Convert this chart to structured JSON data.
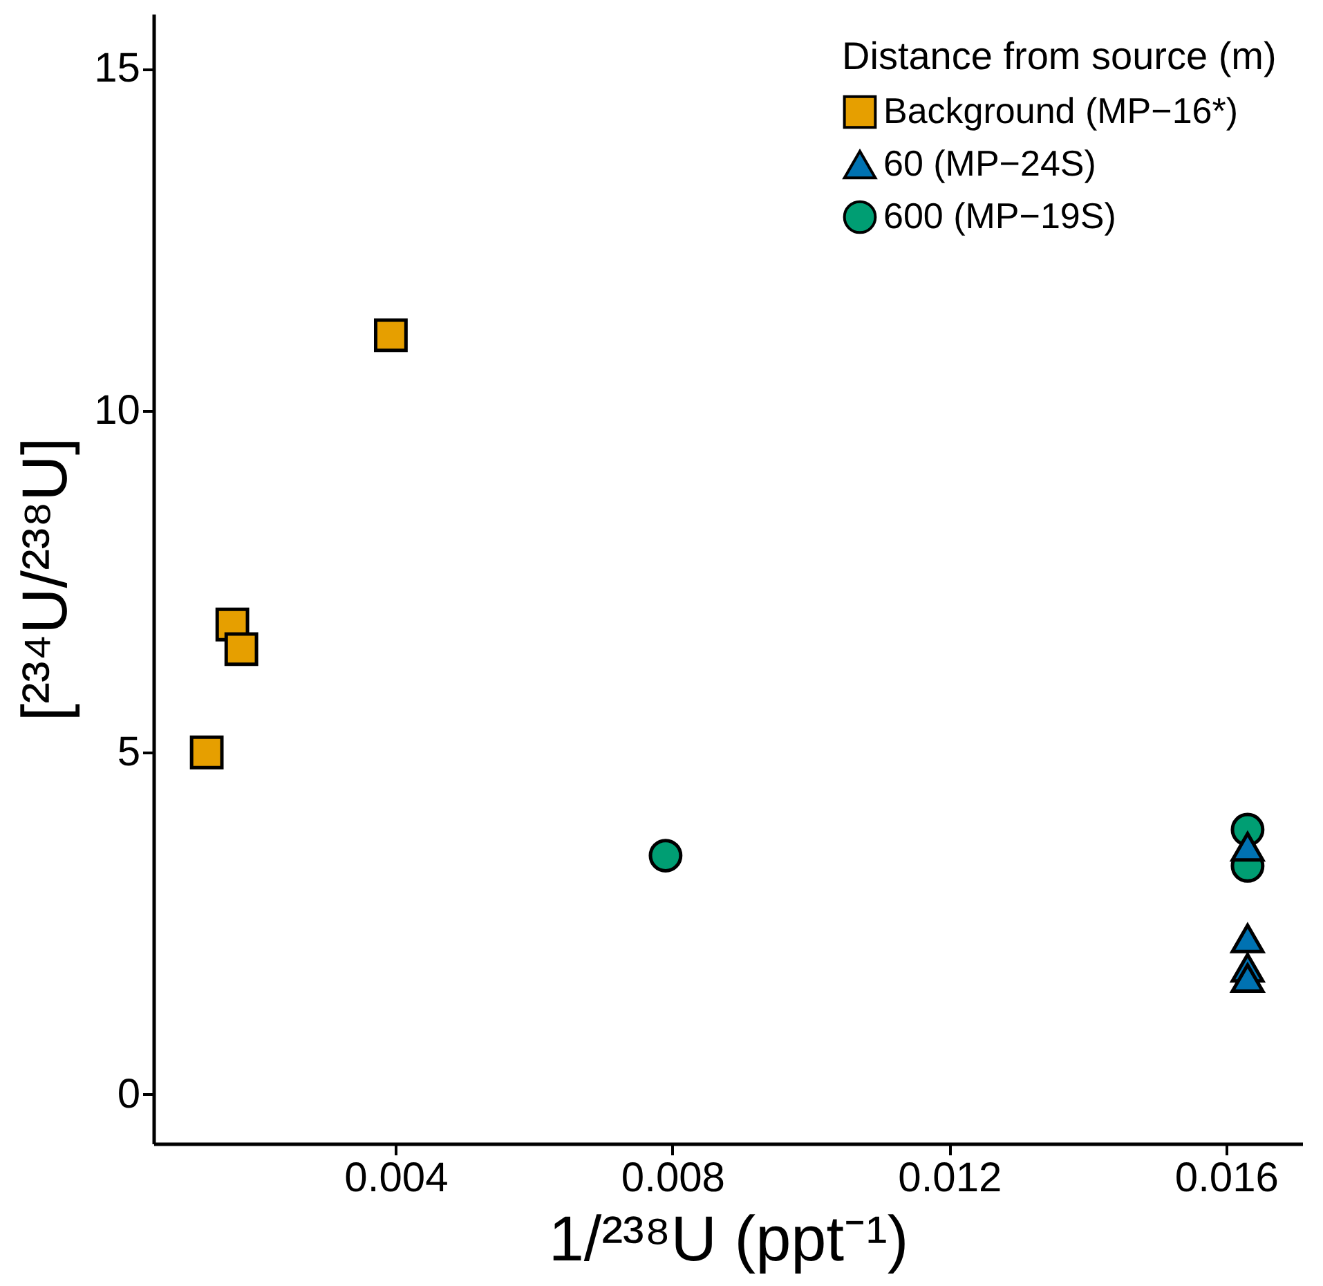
{
  "chart_data": {
    "type": "scatter",
    "xlabel": "1/²³⁸U (ppt⁻¹)",
    "ylabel": "[²³⁴U/²³⁸U]",
    "legend_title": "Distance from source (m)",
    "legend": "top right",
    "grid": false,
    "xlim": [
      0.0005,
      0.0171
    ],
    "ylim": [
      -0.72,
      15.8
    ],
    "xticks": [
      0.004,
      0.008,
      0.012,
      0.016
    ],
    "yticks": [
      0,
      5,
      10,
      15
    ],
    "series": [
      {
        "name": "Background (MP−16*)",
        "color": "#e69f00",
        "marker": "square",
        "x": [
          0.00127,
          0.00164,
          0.00177,
          0.00393
        ],
        "values": [
          5.0,
          6.87,
          6.51,
          11.1
        ]
      },
      {
        "name": "60 (MP−24S)",
        "color": "#0072b2",
        "marker": "triangle",
        "x": [
          0.01631,
          0.01631,
          0.01631,
          0.01631
        ],
        "values": [
          3.62,
          2.28,
          1.85,
          1.7
        ]
      },
      {
        "name": "600 (MP−19S)",
        "color": "#009e73",
        "marker": "circle",
        "x": [
          0.0079,
          0.01631,
          0.01631
        ],
        "values": [
          3.49,
          3.87,
          3.34
        ]
      }
    ]
  }
}
